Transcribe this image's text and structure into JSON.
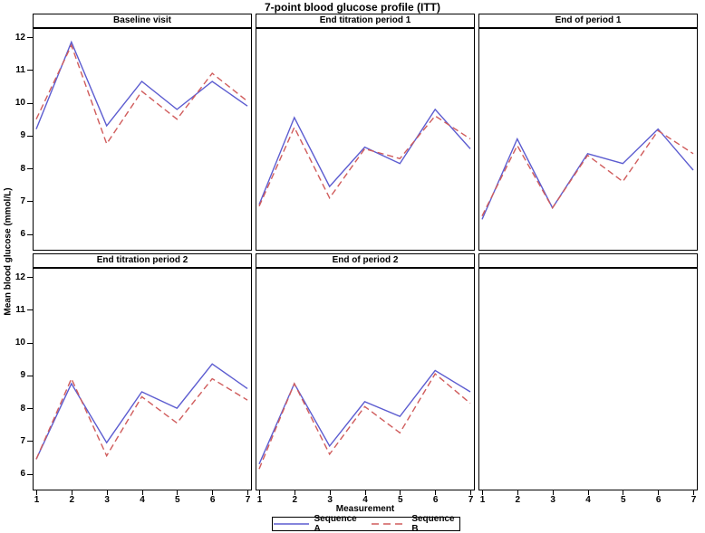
{
  "chart_data": {
    "type": "line",
    "title": "7-point blood glucose profile (ITT)",
    "xlabel": "Measurement",
    "ylabel": "Mean blood glucose (mmol/L)",
    "x": [
      1,
      2,
      3,
      4,
      5,
      6,
      7
    ],
    "x_tick_labels": [
      "1",
      "2",
      "3",
      "4",
      "5",
      "6",
      "7"
    ],
    "y_tick_labels": [
      "12",
      "11",
      "10",
      "9",
      "8",
      "7",
      "6"
    ],
    "y_ticks": [
      12,
      11,
      10,
      9,
      8,
      7,
      6
    ],
    "ylim_display": [
      5.55,
      12.25
    ],
    "grid": "off",
    "legend_position": "bottom-center",
    "colors": {
      "sequence_a": "#5c5cd0",
      "sequence_b": "#d05c5c",
      "frame": "#000000"
    },
    "legend": [
      {
        "label": "Sequence A",
        "style": "solid",
        "color": "#5c5cd0"
      },
      {
        "label": "Sequence B",
        "style": "dashed",
        "color": "#d05c5c"
      }
    ],
    "panels": [
      {
        "title": "Baseline visit",
        "series": [
          {
            "name": "Sequence A",
            "values": [
              9.2,
              11.85,
              9.3,
              10.65,
              9.8,
              10.65,
              9.9
            ]
          },
          {
            "name": "Sequence B",
            "values": [
              9.5,
              11.75,
              8.75,
              10.35,
              9.5,
              10.9,
              10.05
            ]
          }
        ]
      },
      {
        "title": "End titration period 1",
        "series": [
          {
            "name": "Sequence A",
            "values": [
              6.9,
              9.55,
              7.45,
              8.65,
              8.15,
              9.8,
              8.6
            ]
          },
          {
            "name": "Sequence B",
            "values": [
              6.85,
              9.25,
              7.1,
              8.6,
              8.3,
              9.6,
              8.9
            ]
          }
        ]
      },
      {
        "title": "End of period 1",
        "series": [
          {
            "name": "Sequence A",
            "values": [
              6.45,
              8.9,
              6.8,
              8.45,
              8.15,
              9.2,
              7.95
            ]
          },
          {
            "name": "Sequence B",
            "values": [
              6.55,
              8.7,
              6.8,
              8.4,
              7.6,
              9.15,
              8.45
            ]
          }
        ]
      },
      {
        "title": "End titration period 2",
        "series": [
          {
            "name": "Sequence A",
            "values": [
              6.45,
              8.75,
              6.95,
              8.5,
              8.0,
              9.35,
              8.6
            ]
          },
          {
            "name": "Sequence B",
            "values": [
              6.45,
              8.9,
              6.55,
              8.35,
              7.55,
              8.9,
              8.25
            ]
          }
        ]
      },
      {
        "title": "End of period 2",
        "series": [
          {
            "name": "Sequence A",
            "values": [
              6.3,
              8.75,
              6.85,
              8.2,
              7.75,
              9.15,
              8.5
            ]
          },
          {
            "name": "Sequence B",
            "values": [
              6.15,
              8.75,
              6.6,
              8.05,
              7.25,
              9.05,
              8.15
            ]
          }
        ]
      },
      {
        "title": "",
        "series": []
      }
    ]
  }
}
